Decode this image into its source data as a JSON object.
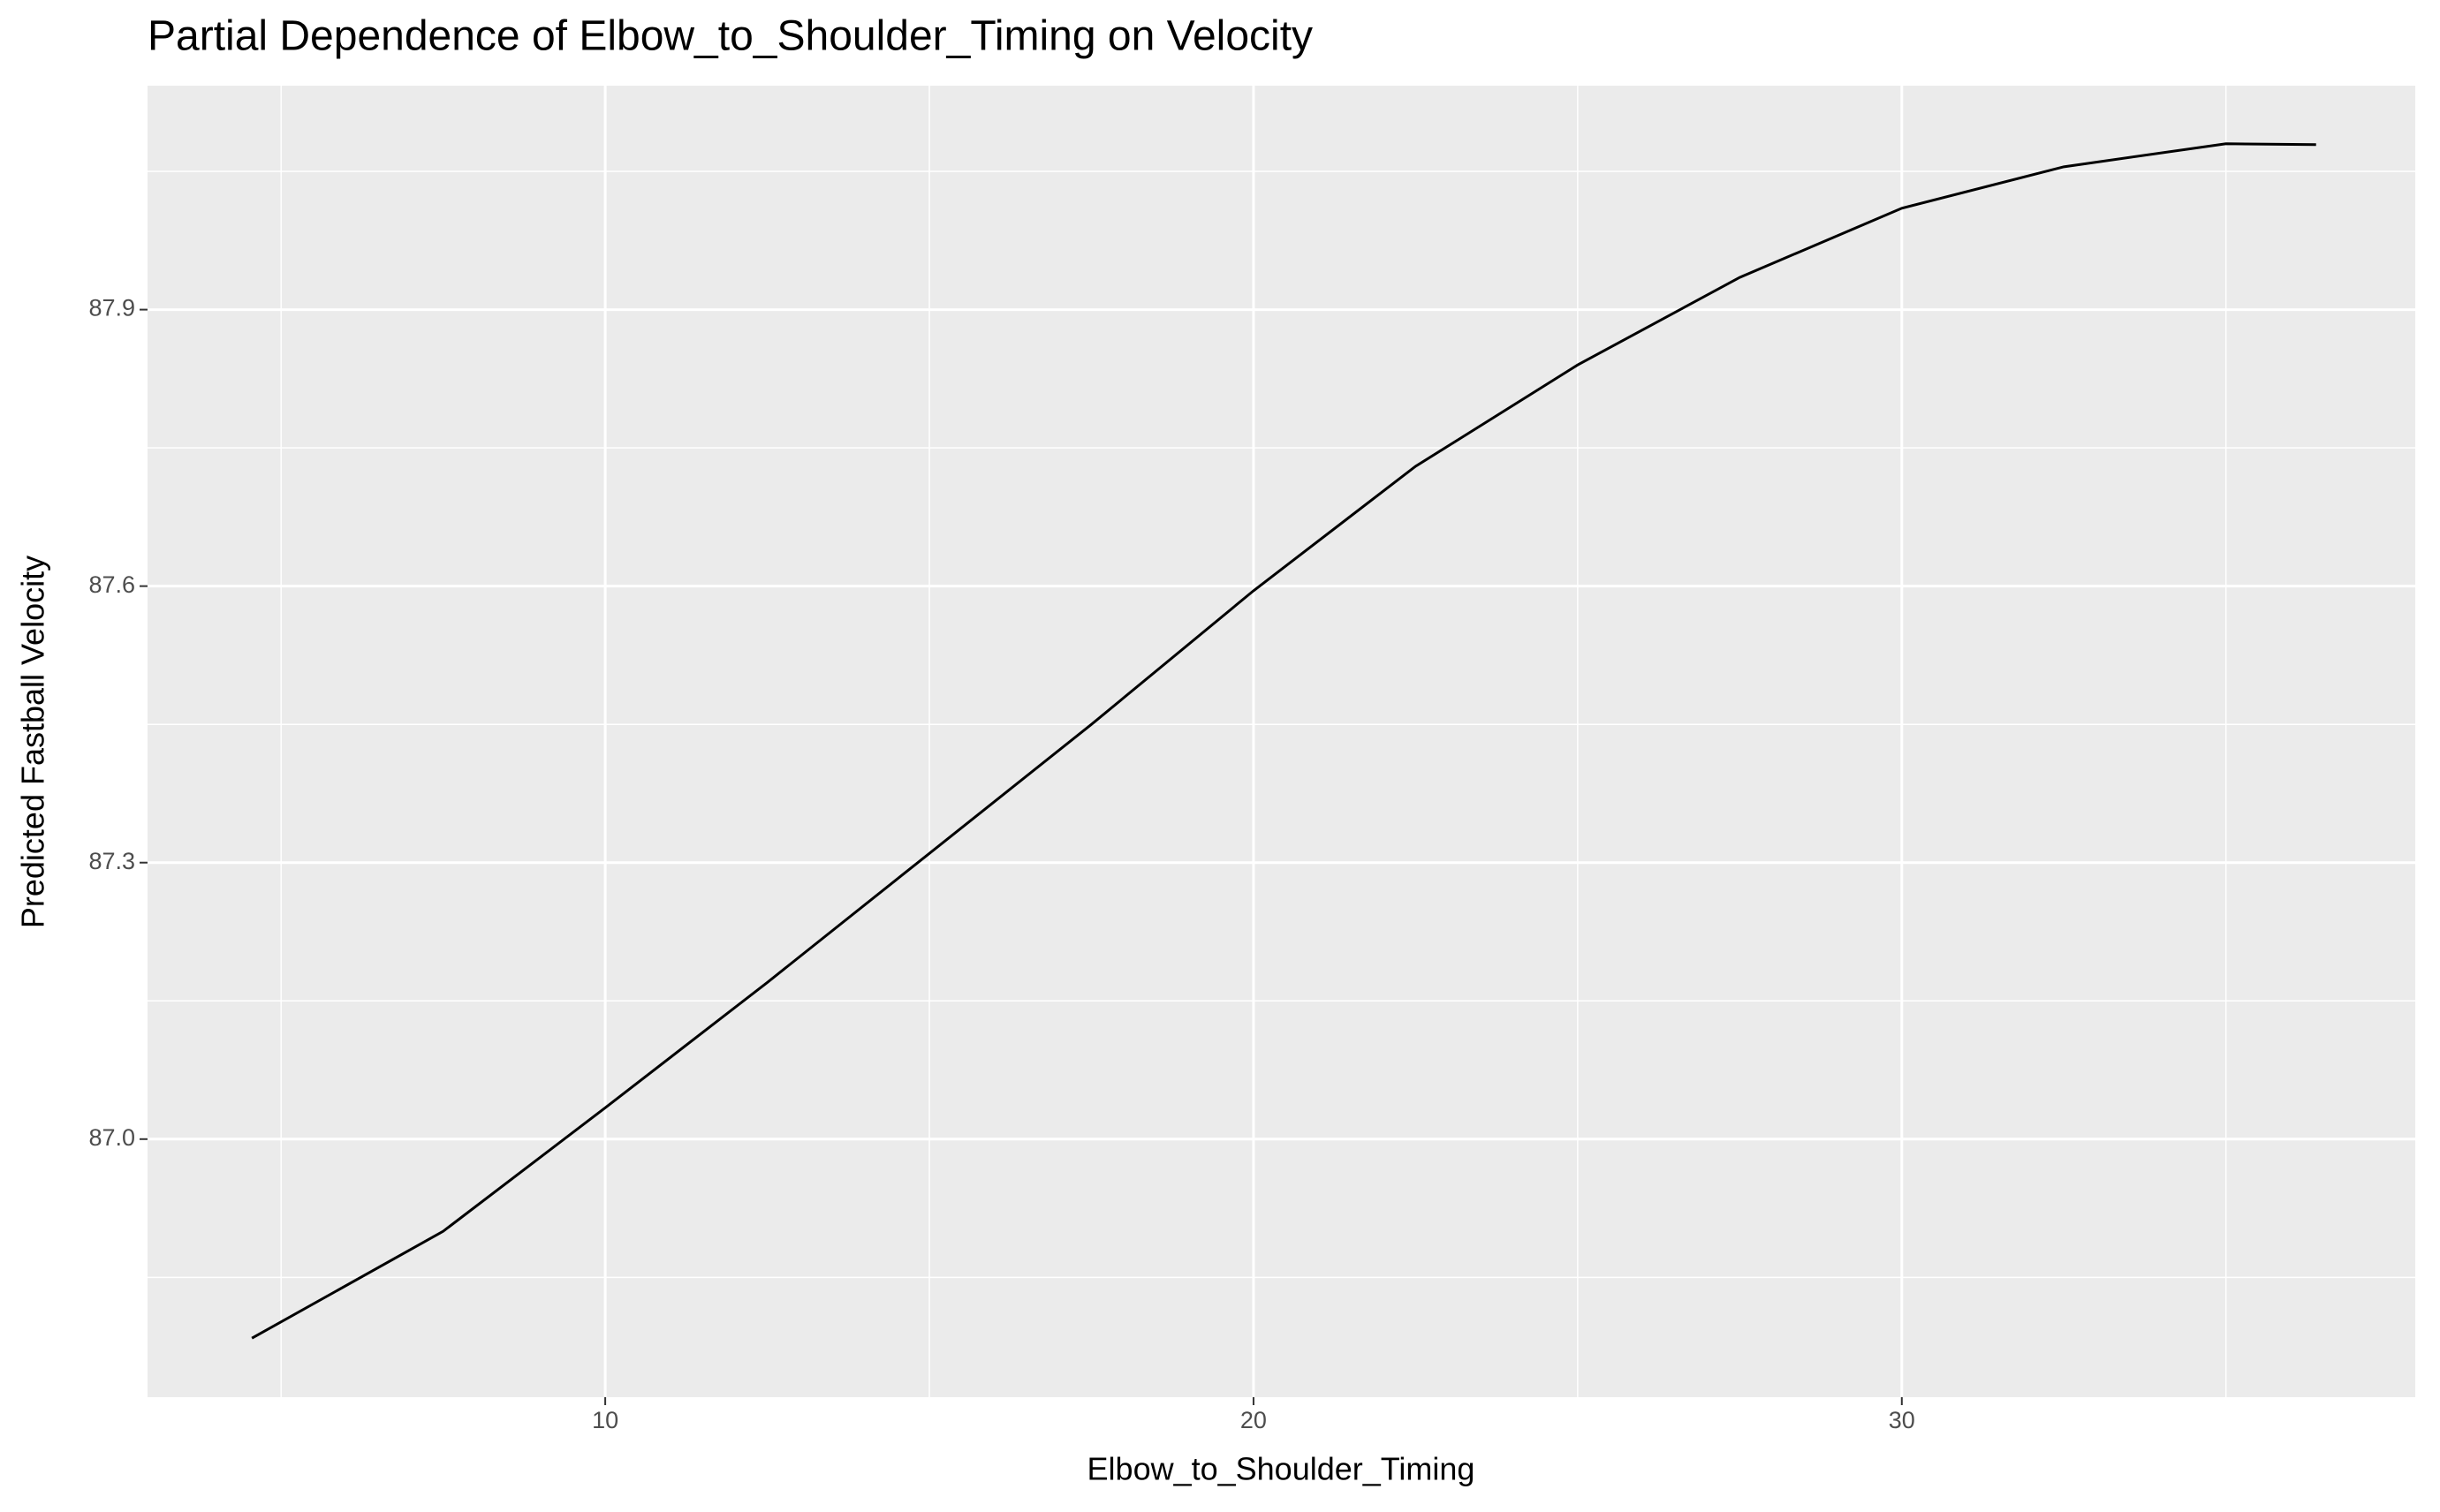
{
  "chart_data": {
    "type": "line",
    "title": "Partial Dependence of Elbow_to_Shoulder_Timing on Velocity",
    "x_label": "Elbow_to_Shoulder_Timing",
    "y_label": "Predicted Fastball Velocity",
    "x": [
      4.55,
      7.5,
      10,
      12.5,
      15,
      17.5,
      20,
      22.5,
      25,
      27.5,
      30,
      32.5,
      35,
      36.39
    ],
    "series": [
      {
        "name": "Predicted Fastball Velocity",
        "color": "#000000",
        "values": [
          86.784,
          86.9,
          87.034,
          87.17,
          87.31,
          87.45,
          87.595,
          87.73,
          87.84,
          87.935,
          88.01,
          88.055,
          88.08,
          88.079
        ]
      }
    ],
    "xlim": [
      2.94,
      37.92
    ],
    "ylim": [
      86.72,
      88.143
    ],
    "xticks": [
      10,
      20,
      30
    ],
    "yticks": [
      {
        "value": 87.0,
        "label": "87.0"
      },
      {
        "value": 87.3,
        "label": "87.3"
      },
      {
        "value": 87.6,
        "label": "87.6"
      },
      {
        "value": 87.9,
        "label": "87.9"
      }
    ],
    "x_minor_grid": [
      5,
      15,
      25,
      35
    ],
    "y_minor_grid": [
      86.85,
      87.15,
      87.45,
      87.75,
      88.05
    ],
    "grid": true,
    "panel_color": "#ebebeb",
    "grid_color": "#ffffff"
  }
}
